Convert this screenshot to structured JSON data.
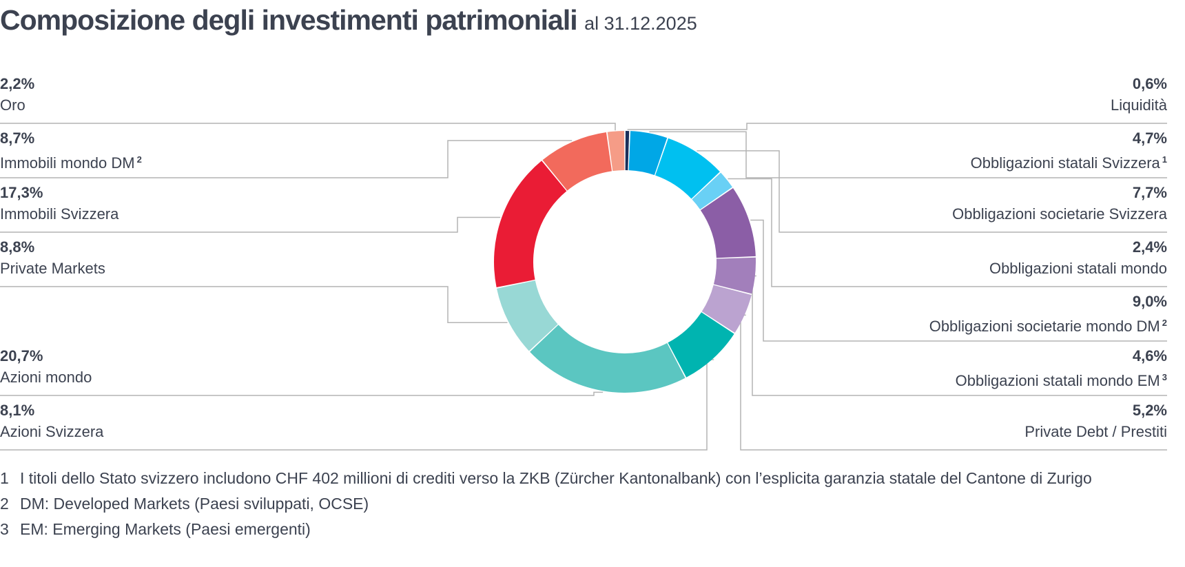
{
  "title": "Composizione degli investimenti patrimoniali",
  "date": "al 31.12.2025",
  "chart_data": {
    "type": "pie",
    "donut": true,
    "slices": [
      {
        "label": "Liquidità",
        "value_label": "0,6%",
        "value": 0.6,
        "sup": "",
        "color": "#1a2f5a"
      },
      {
        "label": "Obbligazioni statali Svizzera",
        "value_label": "4,7%",
        "value": 4.7,
        "sup": "1",
        "color": "#00a7e6"
      },
      {
        "label": "Obbligazioni societarie Svizzera",
        "value_label": "7,7%",
        "value": 7.7,
        "sup": "",
        "color": "#00c0f0"
      },
      {
        "label": "Obbligazioni statali mondo",
        "value_label": "2,4%",
        "value": 2.4,
        "sup": "",
        "color": "#69d0f5"
      },
      {
        "label": "Obbligazioni societarie mondo DM",
        "value_label": "9,0%",
        "value": 9.0,
        "sup": "2",
        "color": "#8b5ea6"
      },
      {
        "label": "Obbligazioni statali mondo EM",
        "value_label": "4,6%",
        "value": 4.6,
        "sup": "3",
        "color": "#a27fbb"
      },
      {
        "label": "Private Debt / Prestiti",
        "value_label": "5,2%",
        "value": 5.2,
        "sup": "",
        "color": "#bba3d0"
      },
      {
        "label": "Azioni Svizzera",
        "value_label": "8,1%",
        "value": 8.1,
        "sup": "",
        "color": "#00b4b0"
      },
      {
        "label": "Azioni mondo",
        "value_label": "20,7%",
        "value": 20.7,
        "sup": "",
        "color": "#5bc6c1"
      },
      {
        "label": "Private Markets",
        "value_label": "8,8%",
        "value": 8.8,
        "sup": "",
        "color": "#98d8d5"
      },
      {
        "label": "Immobili Svizzera",
        "value_label": "17,3%",
        "value": 17.3,
        "sup": "",
        "color": "#ea1c35"
      },
      {
        "label": "Immobili mondo DM",
        "value_label": "8,7%",
        "value": 8.7,
        "sup": "2",
        "color": "#f26a5c"
      },
      {
        "label": "Oro",
        "value_label": "2,2%",
        "value": 2.2,
        "sup": "",
        "color": "#f59c87"
      }
    ]
  },
  "footnotes": [
    {
      "num": "1",
      "text": "I titoli dello Stato svizzero includono CHF 402 millioni di crediti verso la ZKB (Zürcher Kantonalbank) con l’esplicita garanzia statale del Cantone di Zurigo"
    },
    {
      "num": "2",
      "text": "DM: Developed Markets (Paesi sviluppati, OCSE)"
    },
    {
      "num": "3",
      "text": "EM: Emerging Markets (Paesi emergenti)"
    }
  ],
  "colors": {
    "text": "#3c4250",
    "rule": "#b4b4b4"
  }
}
